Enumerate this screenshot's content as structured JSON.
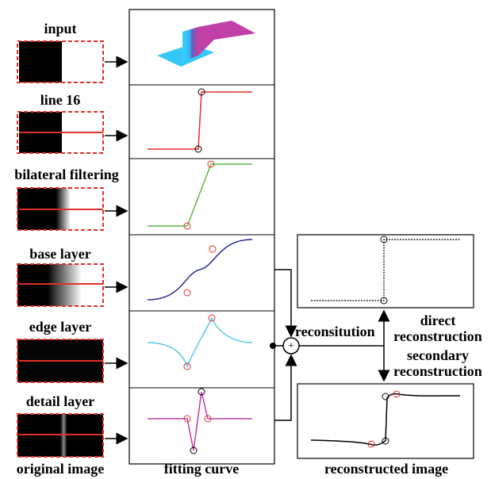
{
  "rows": [
    {
      "label": "input"
    },
    {
      "label": "line 16"
    },
    {
      "label": "bilateral filtering"
    },
    {
      "label": "base layer"
    },
    {
      "label": "edge layer"
    },
    {
      "label": "detail layer"
    }
  ],
  "columns": {
    "original": "original image",
    "fitting": "fitting curve",
    "reconstructed": "reconstructed image"
  },
  "combine": {
    "label": "reconsitution",
    "operator": "+"
  },
  "outputs": {
    "direct": [
      "direct",
      "reconstruction"
    ],
    "secondary": [
      "secondary",
      "reconstruction"
    ]
  }
}
